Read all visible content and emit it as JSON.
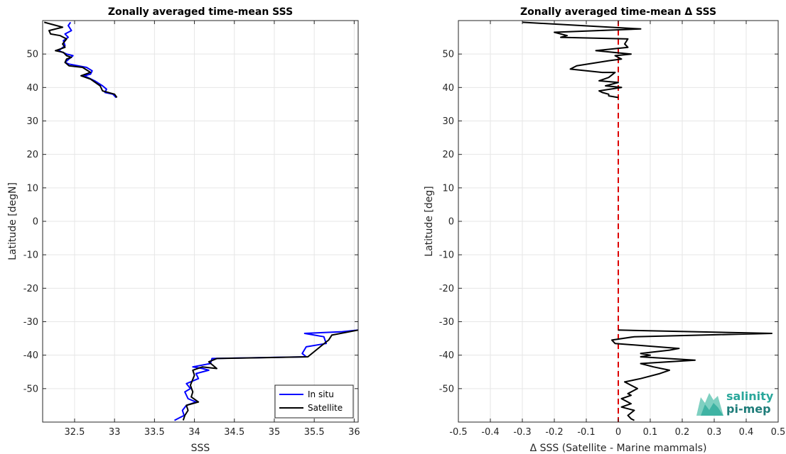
{
  "chart_data": [
    {
      "type": "line",
      "title": "Zonally averaged time-mean SSS",
      "xlabel": "SSS",
      "ylabel": "Latitude [degN]",
      "xlim": [
        32.1,
        36.05
      ],
      "ylim": [
        -60,
        60
      ],
      "xticks": [
        32.5,
        33,
        33.5,
        34,
        34.5,
        35,
        35.5,
        36
      ],
      "xtick_labels": [
        "32.5",
        "33",
        "33.5",
        "34",
        "34.5",
        "35",
        "35.5",
        "36"
      ],
      "yticks": [
        -50,
        -40,
        -30,
        -20,
        -10,
        0,
        10,
        20,
        30,
        40,
        50
      ],
      "ytick_labels": [
        "-50",
        "-40",
        "-30",
        "-20",
        "-10",
        "0",
        "10",
        "20",
        "30",
        "40",
        "50"
      ],
      "grid": true,
      "legend_position": "bottom-right",
      "series": [
        {
          "name": "In situ",
          "color": "#0000ff",
          "points": [
            [
              32.45,
              59.5
            ],
            [
              32.42,
              58.5
            ],
            [
              32.46,
              57.0
            ],
            [
              32.38,
              56.0
            ],
            [
              32.42,
              55.0
            ],
            [
              32.36,
              54.0
            ],
            [
              32.38,
              52.5
            ],
            [
              32.3,
              51.0
            ],
            [
              32.4,
              50.0
            ],
            [
              32.48,
              49.5
            ],
            [
              32.43,
              48.5
            ],
            [
              32.38,
              47.5
            ],
            [
              32.43,
              47.0
            ],
            [
              32.65,
              46.0
            ],
            [
              32.72,
              45.0
            ],
            [
              32.7,
              44.0
            ],
            [
              32.62,
              43.5
            ],
            [
              32.75,
              42.0
            ],
            [
              32.85,
              40.5
            ],
            [
              32.9,
              39.5
            ],
            [
              32.88,
              38.5
            ],
            [
              32.98,
              38.0
            ],
            [
              33.02,
              37.0
            ]
          ]
        },
        {
          "name": "Satellite",
          "color": "#000000",
          "points": [
            [
              32.12,
              59.5
            ],
            [
              32.35,
              58.0
            ],
            [
              32.18,
              57.0
            ],
            [
              32.2,
              56.0
            ],
            [
              32.32,
              55.5
            ],
            [
              32.4,
              54.5
            ],
            [
              32.35,
              53.0
            ],
            [
              32.38,
              52.0
            ],
            [
              32.26,
              51.0
            ],
            [
              32.36,
              50.5
            ],
            [
              32.4,
              49.5
            ],
            [
              32.46,
              49.0
            ],
            [
              32.4,
              48.5
            ],
            [
              32.38,
              47.5
            ],
            [
              32.43,
              46.5
            ],
            [
              32.6,
              46.0
            ],
            [
              32.7,
              44.5
            ],
            [
              32.58,
              43.5
            ],
            [
              32.7,
              42.5
            ],
            [
              32.82,
              40.5
            ],
            [
              32.85,
              39.0
            ],
            [
              33.0,
              38.0
            ],
            [
              33.03,
              37.0
            ]
          ]
        },
        {
          "name": "In situ",
          "color": "#0000ff",
          "points": [
            [
              36.05,
              -32.5
            ],
            [
              35.85,
              -33.0
            ],
            [
              35.38,
              -33.5
            ],
            [
              35.62,
              -34.5
            ],
            [
              35.65,
              -36.5
            ],
            [
              35.4,
              -37.5
            ],
            [
              35.35,
              -39.5
            ],
            [
              35.4,
              -40.5
            ],
            [
              34.22,
              -41.0
            ],
            [
              34.2,
              -42.5
            ],
            [
              33.98,
              -43.5
            ],
            [
              34.1,
              -44.0
            ],
            [
              34.18,
              -44.5
            ],
            [
              34.02,
              -45.5
            ],
            [
              34.05,
              -47.0
            ],
            [
              33.9,
              -48.5
            ],
            [
              33.95,
              -50.0
            ],
            [
              33.88,
              -51.0
            ],
            [
              33.92,
              -53.0
            ],
            [
              34.02,
              -54.0
            ],
            [
              33.9,
              -55.0
            ],
            [
              33.85,
              -56.5
            ],
            [
              33.87,
              -58.0
            ],
            [
              33.75,
              -59.5
            ]
          ]
        },
        {
          "name": "Satellite",
          "color": "#000000",
          "points": [
            [
              36.05,
              -32.5
            ],
            [
              35.72,
              -34.0
            ],
            [
              35.68,
              -35.5
            ],
            [
              35.6,
              -37.0
            ],
            [
              35.42,
              -40.5
            ],
            [
              34.28,
              -41.0
            ],
            [
              34.18,
              -42.0
            ],
            [
              34.28,
              -44.0
            ],
            [
              34.1,
              -43.5
            ],
            [
              33.98,
              -44.5
            ],
            [
              34.0,
              -46.0
            ],
            [
              33.95,
              -49.0
            ],
            [
              33.98,
              -51.0
            ],
            [
              33.96,
              -52.5
            ],
            [
              34.05,
              -54.0
            ],
            [
              33.9,
              -55.0
            ],
            [
              33.92,
              -56.5
            ],
            [
              33.88,
              -58.0
            ],
            [
              33.86,
              -59.5
            ]
          ]
        }
      ],
      "legend": [
        {
          "name": "In situ",
          "color": "#0000ff"
        },
        {
          "name": "Satellite",
          "color": "#000000"
        }
      ]
    },
    {
      "type": "line",
      "title": "Zonally averaged time-mean Δ SSS",
      "xlabel": "Δ SSS (Satellite - Marine mammals)",
      "ylabel": "Latitude [deg]",
      "xlim": [
        -0.5,
        0.5
      ],
      "ylim": [
        -60,
        60
      ],
      "xticks": [
        -0.5,
        -0.4,
        -0.3,
        -0.2,
        -0.1,
        0,
        0.1,
        0.2,
        0.3,
        0.4,
        0.5
      ],
      "xtick_labels": [
        "-0.5",
        "-0.4",
        "-0.3",
        "-0.2",
        "-0.1",
        "0",
        "0.1",
        "0.2",
        "0.3",
        "0.4",
        "0.5"
      ],
      "yticks": [
        -50,
        -40,
        -30,
        -20,
        -10,
        0,
        10,
        20,
        30,
        40,
        50
      ],
      "ytick_labels": [
        "-50",
        "-40",
        "-30",
        "-20",
        "-10",
        "0",
        "10",
        "20",
        "30",
        "40",
        "50"
      ],
      "grid": true,
      "reference_line": {
        "x": 0,
        "color": "#dd0000",
        "style": "dashed"
      },
      "series": [
        {
          "color": "#000000",
          "points": [
            [
              -0.3,
              59.5
            ],
            [
              0.07,
              57.5
            ],
            [
              -0.2,
              56.5
            ],
            [
              -0.16,
              55.5
            ],
            [
              -0.18,
              55.0
            ],
            [
              0.03,
              54.5
            ],
            [
              0.02,
              53.0
            ],
            [
              0.03,
              52.0
            ],
            [
              -0.07,
              51.0
            ],
            [
              0.04,
              50.0
            ],
            [
              -0.01,
              49.5
            ],
            [
              0.01,
              48.5
            ],
            [
              -0.03,
              48.0
            ],
            [
              -0.13,
              46.5
            ],
            [
              -0.15,
              45.5
            ],
            [
              -0.05,
              44.5
            ],
            [
              -0.01,
              44.5
            ],
            [
              -0.03,
              43.0
            ],
            [
              -0.06,
              42.0
            ],
            [
              0.0,
              41.5
            ],
            [
              -0.04,
              40.5
            ],
            [
              0.01,
              40.0
            ],
            [
              -0.06,
              39.0
            ],
            [
              -0.05,
              38.5
            ],
            [
              -0.03,
              38.0
            ],
            [
              -0.03,
              37.5
            ],
            [
              0.0,
              37.0
            ]
          ]
        },
        {
          "color": "#000000",
          "points": [
            [
              0.0,
              -32.5
            ],
            [
              0.48,
              -33.5
            ],
            [
              0.05,
              -34.5
            ],
            [
              -0.02,
              -35.5
            ],
            [
              -0.01,
              -36.5
            ],
            [
              0.19,
              -38.0
            ],
            [
              0.16,
              -38.5
            ],
            [
              0.07,
              -39.5
            ],
            [
              0.1,
              -40.0
            ],
            [
              0.07,
              -40.5
            ],
            [
              0.24,
              -41.5
            ],
            [
              0.07,
              -42.5
            ],
            [
              0.11,
              -43.5
            ],
            [
              0.16,
              -44.5
            ],
            [
              0.13,
              -45.5
            ],
            [
              0.07,
              -47.0
            ],
            [
              0.02,
              -48.0
            ],
            [
              0.04,
              -49.0
            ],
            [
              0.06,
              -50.0
            ],
            [
              0.03,
              -51.5
            ],
            [
              0.04,
              -52.0
            ],
            [
              0.01,
              -53.0
            ],
            [
              0.04,
              -54.5
            ],
            [
              0.01,
              -55.5
            ],
            [
              0.05,
              -56.5
            ],
            [
              0.03,
              -58.0
            ],
            [
              0.04,
              -59.0
            ],
            [
              0.05,
              -59.5
            ]
          ]
        }
      ]
    }
  ],
  "logo": {
    "line1": "salinity",
    "line2": "pi-mep"
  }
}
